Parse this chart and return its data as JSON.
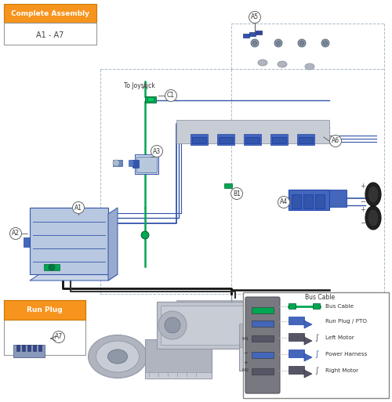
{
  "bg_color": "#ffffff",
  "fig_width": 5.0,
  "fig_height": 5.13,
  "dpi": 100,
  "orange": "#f7941d",
  "blue": "#3355aa",
  "blue2": "#4466bb",
  "green": "#00a651",
  "black": "#111111",
  "gray1": "#c8ccd4",
  "gray2": "#b0b4be",
  "gray3": "#9098a8",
  "gray_line": "#8899aa",
  "dash_color": "#aabbcc",
  "complete_assembly": "Complete Assembly",
  "a1_a7": "A1 - A7",
  "run_plug": "Run Plug",
  "to_joystick": "To Joystick",
  "connector_labels": [
    "Bus Cable",
    "Run Plug / PTO",
    "Left Motor",
    "Power Harness",
    "Right Motor"
  ]
}
